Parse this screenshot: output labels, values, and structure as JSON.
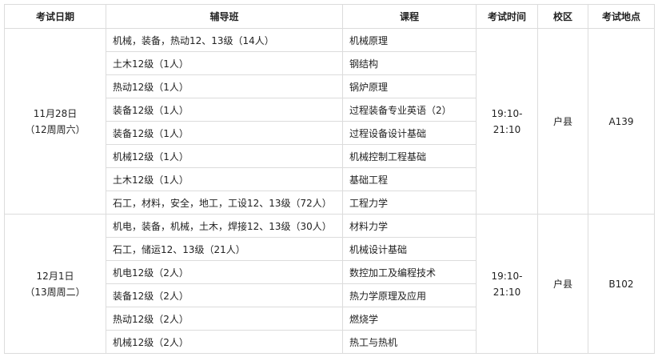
{
  "headers": [
    "考试日期",
    "辅导班",
    "课程",
    "考试时间",
    "校区",
    "考试地点"
  ],
  "groups": [
    {
      "date": "11月28日",
      "week": "（12周周六）",
      "time": "19:10-21:10",
      "campus": "户县",
      "location": "A139",
      "rows": [
        {
          "class": "机械，装备，热动12、13级（14人）",
          "course": "机械原理"
        },
        {
          "class": "土木12级（1人）",
          "course": "钢结构"
        },
        {
          "class": "热动12级（1人）",
          "course": "锅炉原理"
        },
        {
          "class": "装备12级（1人）",
          "course": "过程装备专业英语（2）"
        },
        {
          "class": "装备12级（1人）",
          "course": "过程设备设计基础"
        },
        {
          "class": "机械12级（1人）",
          "course": "机械控制工程基础"
        },
        {
          "class": "土木12级（1人）",
          "course": "基础工程"
        },
        {
          "class": "石工，材料，安全，地工，工设12、13级（72人）",
          "course": "工程力学"
        }
      ]
    },
    {
      "date": "12月1日",
      "week": "（13周周二）",
      "time": "19:10-21:10",
      "campus": "户县",
      "location": "B102",
      "rows": [
        {
          "class": "机电，装备，机械，土木，焊接12、13级（30人）",
          "course": "材料力学"
        },
        {
          "class": "石工，储运12、13级（21人）",
          "course": "机械设计基础"
        },
        {
          "class": "机电12级（2人）",
          "course": "数控加工及编程技术"
        },
        {
          "class": "装备12级（2人）",
          "course": "热力学原理及应用"
        },
        {
          "class": "热动12级（2人）",
          "course": "燃烧学"
        },
        {
          "class": "机械12级（2人）",
          "course": "热工与热机"
        }
      ]
    }
  ]
}
